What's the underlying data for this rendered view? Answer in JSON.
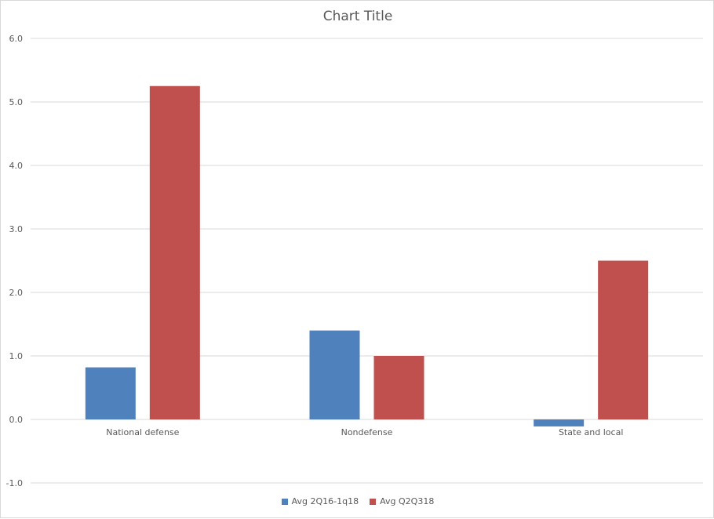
{
  "chart_data": {
    "type": "bar",
    "title": "Chart Title",
    "categories": [
      "National defense",
      "Nondefense",
      "State and local"
    ],
    "series": [
      {
        "name": "Avg 2Q16-1q18",
        "values": [
          0.82,
          1.4,
          -0.11
        ],
        "color": "#4f81bd"
      },
      {
        "name": "Avg Q2Q318",
        "values": [
          5.25,
          1.0,
          2.5
        ],
        "color": "#c0504d"
      }
    ],
    "ylim": [
      -1.0,
      6.0
    ],
    "yticks": [
      "-1.0",
      "0.0",
      "1.0",
      "2.0",
      "3.0",
      "4.0",
      "5.0",
      "6.0"
    ],
    "xlabel": "",
    "ylabel": "",
    "grid": true,
    "legend_position": "bottom"
  }
}
